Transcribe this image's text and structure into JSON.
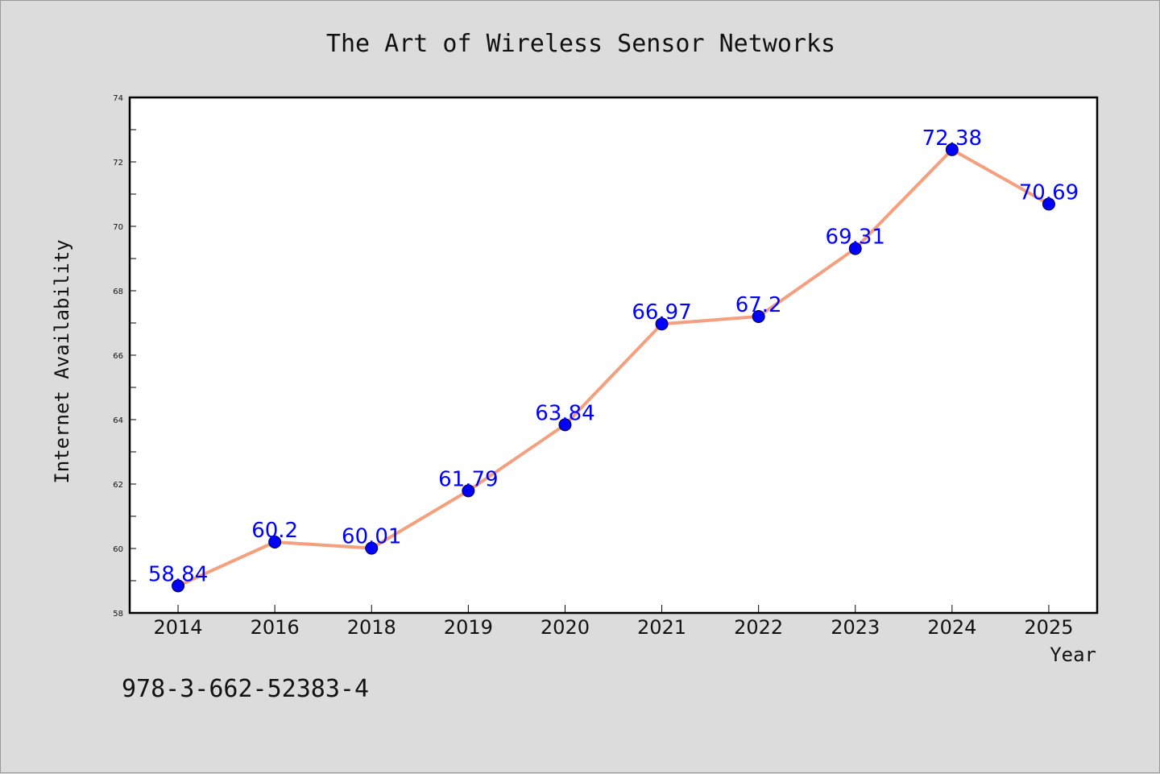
{
  "chart_data": {
    "type": "line",
    "title": "The Art of Wireless Sensor Networks",
    "xlabel": "Year",
    "ylabel": "Internet Availability",
    "categories": [
      "2014",
      "2016",
      "2018",
      "2019",
      "2020",
      "2021",
      "2022",
      "2023",
      "2024",
      "2025"
    ],
    "series": [
      {
        "values": [
          58.84,
          60.2,
          60.01,
          61.79,
          63.84,
          66.97,
          67.2,
          69.31,
          72.38,
          70.69
        ],
        "labels": [
          "58.84",
          "60.2",
          "60.01",
          "61.79",
          "63.84",
          "66.97",
          "67.2",
          "69.31",
          "72.38",
          "70.69"
        ],
        "line_color": "#f4a07f",
        "marker_color": "#0000ff"
      }
    ],
    "ylim": [
      58,
      74
    ],
    "yticks": [
      "58",
      "60",
      "62",
      "64",
      "66",
      "68",
      "70",
      "72",
      "74"
    ],
    "grid": false,
    "legend": "none"
  },
  "footer": {
    "isbn": "978-3-662-52383-4"
  }
}
